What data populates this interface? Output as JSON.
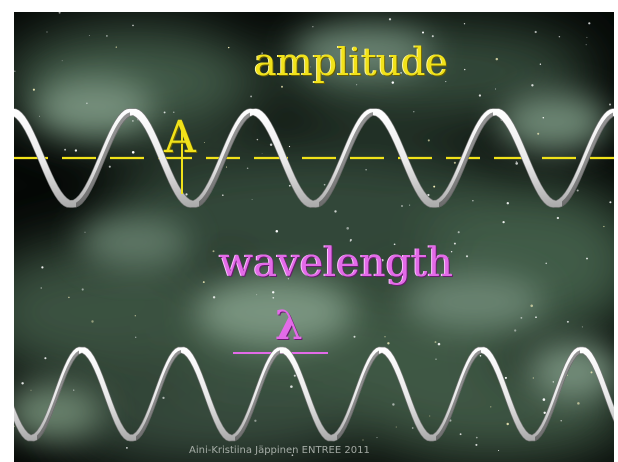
{
  "slide": {
    "amplitude_label": "amplitude",
    "amplitude_symbol": "A",
    "wavelength_label": "wavelength",
    "wavelength_symbol": "λ",
    "credit": "Aini-Kristiina Jäppinen ENTREE 2011"
  },
  "colors": {
    "amplitude": "#f1e21a",
    "wavelength": "#e36be8",
    "ribbon": "#f2f2f2",
    "background": "#050806",
    "nebula": "#6d8a72"
  }
}
